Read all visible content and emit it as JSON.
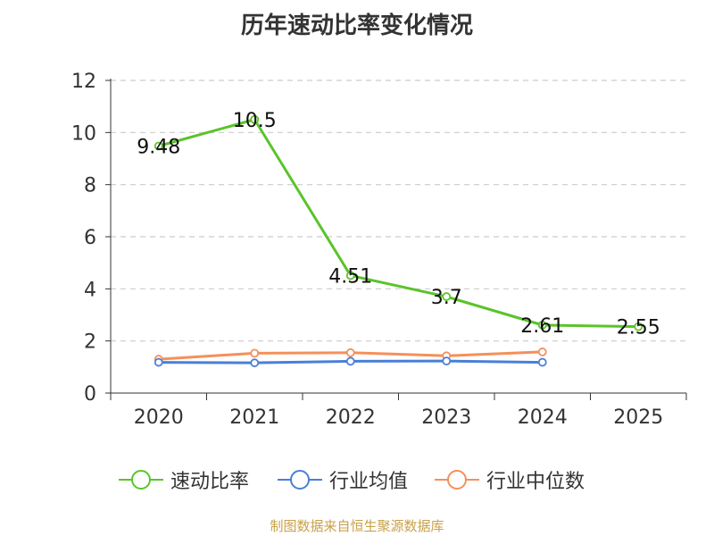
{
  "title": "历年速动比率变化情况",
  "source": "制图数据来自恒生聚源数据库",
  "colors": {
    "speed_ratio": "#5ac42a",
    "industry_avg": "#4a7fd8",
    "industry_median": "#f5905a",
    "grid": "#cccccc",
    "axis": "#333333",
    "text": "#333333"
  },
  "chart_data": {
    "type": "line",
    "title": "历年速动比率变化情况",
    "categories": [
      "2020",
      "2021",
      "2022",
      "2023",
      "2024",
      "2025"
    ],
    "ylim": [
      0,
      12
    ],
    "yticks": [
      0,
      2,
      4,
      6,
      8,
      10,
      12
    ],
    "grid": true,
    "legend_position": "bottom",
    "series": [
      {
        "name": "速动比率",
        "key": "speed_ratio",
        "values": [
          9.48,
          10.5,
          4.51,
          3.7,
          2.61,
          2.55
        ],
        "labels": [
          "9.48",
          "10.5",
          "4.51",
          "3.7",
          "2.61",
          "2.55"
        ]
      },
      {
        "name": "行业均值",
        "key": "industry_avg",
        "values": [
          1.18,
          1.16,
          1.22,
          1.23,
          1.18,
          null
        ]
      },
      {
        "name": "行业中位数",
        "key": "industry_median",
        "values": [
          1.3,
          1.53,
          1.55,
          1.43,
          1.58,
          null
        ]
      }
    ]
  }
}
